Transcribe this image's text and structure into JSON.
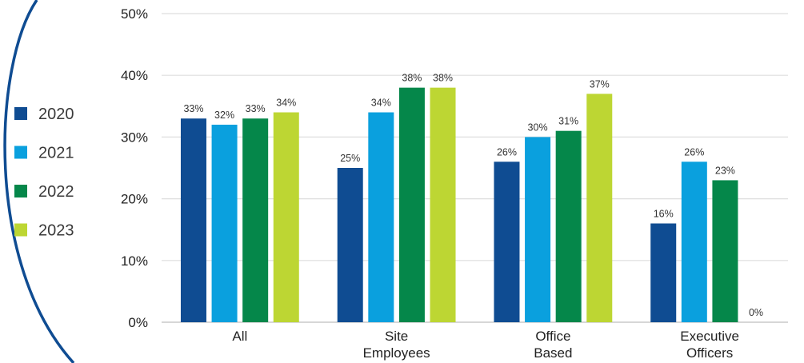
{
  "chart_data": {
    "type": "bar",
    "categories": [
      [
        "All"
      ],
      [
        "Site",
        "Employees"
      ],
      [
        "Office",
        "Based"
      ],
      [
        "Executive",
        "Officers"
      ]
    ],
    "series": [
      {
        "name": "2020",
        "color": "#0F4C92",
        "values": [
          33,
          25,
          26,
          16
        ]
      },
      {
        "name": "2021",
        "color": "#0AA0DE",
        "values": [
          32,
          34,
          30,
          26
        ]
      },
      {
        "name": "2022",
        "color": "#05874A",
        "values": [
          33,
          38,
          31,
          23
        ]
      },
      {
        "name": "2023",
        "color": "#BDD633",
        "values": [
          34,
          38,
          37,
          0
        ]
      }
    ],
    "data_labels": [
      [
        "33%",
        "25%",
        "26%",
        "16%"
      ],
      [
        "32%",
        "34%",
        "30%",
        "26%"
      ],
      [
        "33%",
        "38%",
        "31%",
        "23%"
      ],
      [
        "34%",
        "38%",
        "37%",
        "0%"
      ]
    ],
    "yticks": [
      "0%",
      "10%",
      "20%",
      "30%",
      "40%",
      "50%"
    ],
    "ylim": [
      0,
      50
    ],
    "grid": true,
    "legend": "left",
    "decoration_color": "#0F4C92"
  }
}
